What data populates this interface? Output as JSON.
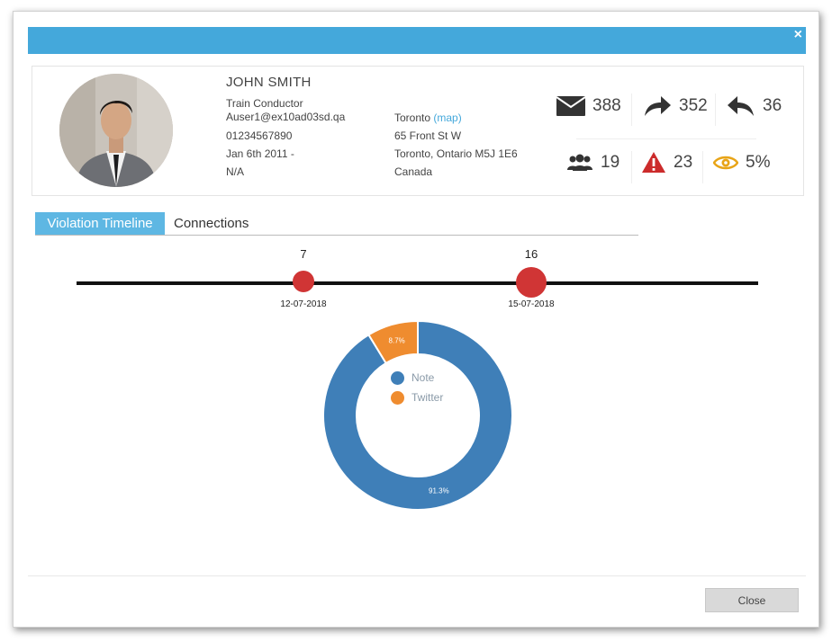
{
  "profile": {
    "name": "JOHN SMITH",
    "title": "Train Conductor",
    "email": "Auser1@ex10ad03sd.qa",
    "phone": "01234567890",
    "date_range": "Jan 6th 2011 -",
    "end_date": "N/A",
    "city": "Toronto",
    "map_link": "(map)",
    "street": "65 Front St W",
    "city_region": "Toronto, Ontario M5J 1E6",
    "country": "Canada"
  },
  "stats": {
    "messages": "388",
    "forwarded": "352",
    "replied": "36",
    "contacts": "19",
    "alerts": "23",
    "viewed": "5%"
  },
  "tabs": [
    "Violation Timeline",
    "Connections"
  ],
  "timeline": {
    "events": [
      {
        "count": "7",
        "date": "12-07-2018"
      },
      {
        "count": "16",
        "date": "15-07-2018"
      }
    ]
  },
  "chart_data": {
    "type": "pie",
    "categories": [
      "Note",
      "Twitter"
    ],
    "values": [
      91.3,
      8.7
    ],
    "value_labels": [
      "91.3%",
      "8.7%"
    ],
    "colors": [
      "#3f7fb8",
      "#ef8c2f"
    ],
    "donut": true
  },
  "colors": {
    "header": "#44a8db",
    "tab_active": "#5eb7e3",
    "event_dot": "#d03535",
    "alert": "#cc2b2b",
    "eye": "#e8a417"
  },
  "footer": {
    "close_label": "Close"
  },
  "icons": {
    "close": "close-icon",
    "messages": "envelope-icon",
    "forwarded": "forward-icon",
    "replied": "reply-icon",
    "contacts": "users-icon",
    "alerts": "warning-icon",
    "viewed": "eye-icon"
  }
}
